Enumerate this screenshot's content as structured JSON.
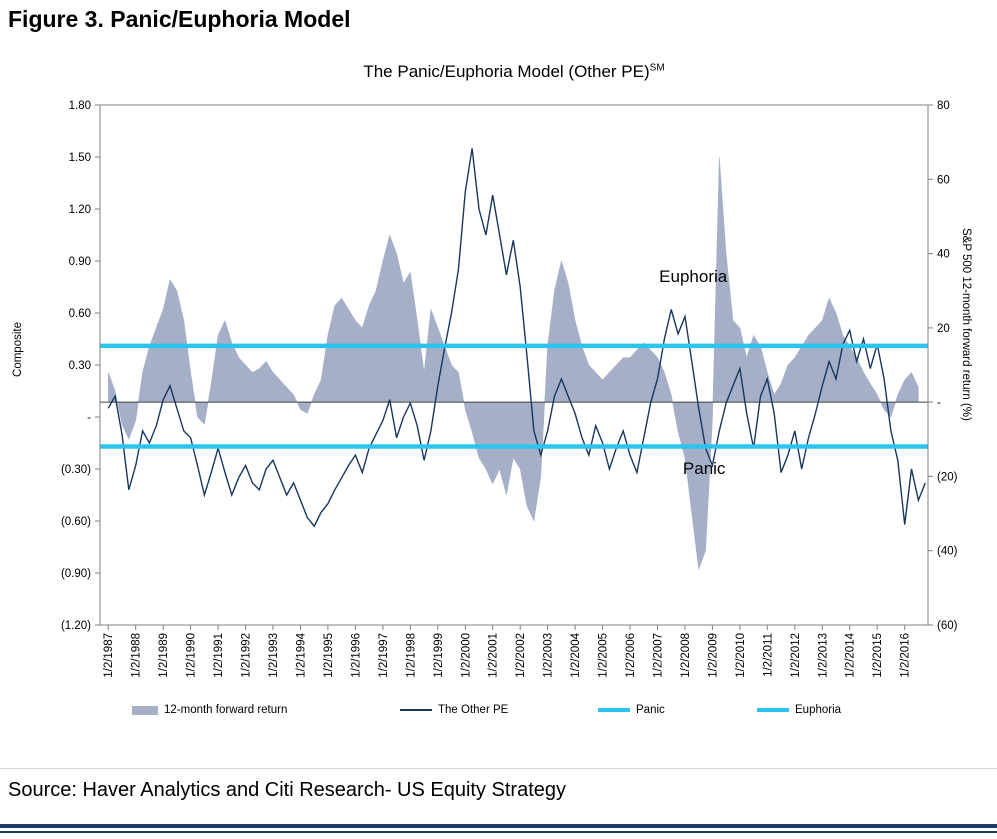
{
  "figure": {
    "heading": "Figure 3. Panic/Euphoria Model",
    "source": "Source: Haver Analytics and Citi Research- US Equity Strategy"
  },
  "chart_data": {
    "type": "line+area",
    "title": "The Panic/Euphoria Model (Other PE)",
    "title_superscript": "SM",
    "grid": "off",
    "legend_position": "bottom",
    "left_axis": {
      "label": "Composite",
      "min": -1.2,
      "max": 1.8,
      "tick_values": [
        1.8,
        1.5,
        1.2,
        0.9,
        0.6,
        0.3,
        0,
        -0.3,
        -0.6,
        -0.9,
        -1.2
      ],
      "tick_labels": [
        "1.80",
        "1.50",
        "1.20",
        "0.90",
        "0.60",
        "0.30",
        "-",
        "(0.30)",
        "(0.60)",
        "(0.90)",
        "(1.20)"
      ]
    },
    "right_axis": {
      "label": "S&P 500 12-month forward return (%)",
      "min": -60,
      "max": 80,
      "tick_values": [
        80,
        60,
        40,
        20,
        0,
        -20,
        -40,
        -60
      ],
      "tick_labels": [
        "80",
        "60",
        "40",
        "20",
        "-",
        "(20)",
        "(40)",
        "(60)"
      ]
    },
    "x_tick_labels": [
      "1/2/1987",
      "1/2/1988",
      "1/2/1989",
      "1/2/1990",
      "1/2/1991",
      "1/2/1992",
      "1/2/1993",
      "1/2/1994",
      "1/2/1995",
      "1/2/1996",
      "1/2/1997",
      "1/2/1998",
      "1/2/1999",
      "1/2/2000",
      "1/2/2001",
      "1/2/2002",
      "1/2/2003",
      "1/2/2004",
      "1/2/2005",
      "1/2/2006",
      "1/2/2007",
      "1/2/2008",
      "1/2/2009",
      "1/2/2010",
      "1/2/2011",
      "1/2/2012",
      "1/2/2013",
      "1/2/2014",
      "1/2/2015",
      "1/2/2016"
    ],
    "reference_lines": [
      {
        "name": "Panic",
        "value": -0.17,
        "axis": "left",
        "color": "#2cc3ef"
      },
      {
        "name": "Euphoria",
        "value": 0.41,
        "axis": "left",
        "color": "#2cc3ef"
      }
    ],
    "annotations": [
      {
        "text": "Euphoria",
        "x": 2008.3,
        "y": 0.78
      },
      {
        "text": "Panic",
        "x": 2008.7,
        "y": -0.33
      }
    ],
    "series": [
      {
        "name": "12-month forward return",
        "type": "area",
        "axis": "right",
        "color": "#a5afc7",
        "x_start": 1987.0,
        "x_step": 0.25,
        "values": [
          8,
          3,
          -6,
          -10,
          -5,
          8,
          15,
          20,
          25,
          33,
          30,
          22,
          8,
          -4,
          -6,
          5,
          18,
          22,
          16,
          12,
          10,
          8,
          9,
          11,
          8,
          6,
          4,
          2,
          -2,
          -3,
          2,
          6,
          18,
          26,
          28,
          25,
          22,
          20,
          26,
          30,
          38,
          45,
          40,
          32,
          35,
          22,
          8,
          25,
          20,
          15,
          10,
          8,
          -2,
          -8,
          -15,
          -18,
          -22,
          -18,
          -25,
          -15,
          -18,
          -28,
          -32,
          -20,
          15,
          30,
          38,
          32,
          22,
          15,
          10,
          8,
          6,
          8,
          10,
          12,
          12,
          14,
          16,
          14,
          12,
          8,
          2,
          -8,
          -15,
          -30,
          -45,
          -40,
          -5,
          66,
          40,
          22,
          20,
          12,
          18,
          15,
          8,
          2,
          5,
          10,
          12,
          15,
          18,
          20,
          22,
          28,
          24,
          18,
          15,
          12,
          8,
          5,
          2,
          -2,
          -4,
          2,
          6,
          8,
          4
        ]
      },
      {
        "name": "The Other PE",
        "type": "line",
        "axis": "left",
        "color": "#17375e",
        "x_start": 1987.0,
        "x_step": 0.25,
        "values": [
          0.05,
          0.12,
          -0.1,
          -0.42,
          -0.28,
          -0.08,
          -0.15,
          -0.05,
          0.1,
          0.18,
          0.05,
          -0.08,
          -0.12,
          -0.28,
          -0.45,
          -0.32,
          -0.18,
          -0.32,
          -0.45,
          -0.35,
          -0.28,
          -0.38,
          -0.42,
          -0.3,
          -0.25,
          -0.35,
          -0.45,
          -0.38,
          -0.48,
          -0.58,
          -0.63,
          -0.55,
          -0.5,
          -0.42,
          -0.35,
          -0.28,
          -0.22,
          -0.32,
          -0.18,
          -0.1,
          -0.02,
          0.1,
          -0.12,
          0.0,
          0.08,
          -0.05,
          -0.25,
          -0.08,
          0.18,
          0.4,
          0.6,
          0.85,
          1.3,
          1.55,
          1.2,
          1.05,
          1.28,
          1.05,
          0.82,
          1.02,
          0.75,
          0.35,
          -0.08,
          -0.22,
          -0.08,
          0.12,
          0.22,
          0.12,
          0.02,
          -0.12,
          -0.22,
          -0.05,
          -0.15,
          -0.3,
          -0.18,
          -0.08,
          -0.22,
          -0.32,
          -0.12,
          0.08,
          0.22,
          0.45,
          0.62,
          0.48,
          0.58,
          0.32,
          0.05,
          -0.18,
          -0.28,
          -0.08,
          0.08,
          0.18,
          0.28,
          0.02,
          -0.18,
          0.12,
          0.22,
          0.02,
          -0.32,
          -0.22,
          -0.08,
          -0.3,
          -0.12,
          0.02,
          0.18,
          0.32,
          0.22,
          0.42,
          0.5,
          0.32,
          0.45,
          0.28,
          0.42,
          0.22,
          -0.08,
          -0.25,
          -0.62,
          -0.3,
          -0.48,
          -0.38
        ]
      }
    ]
  }
}
